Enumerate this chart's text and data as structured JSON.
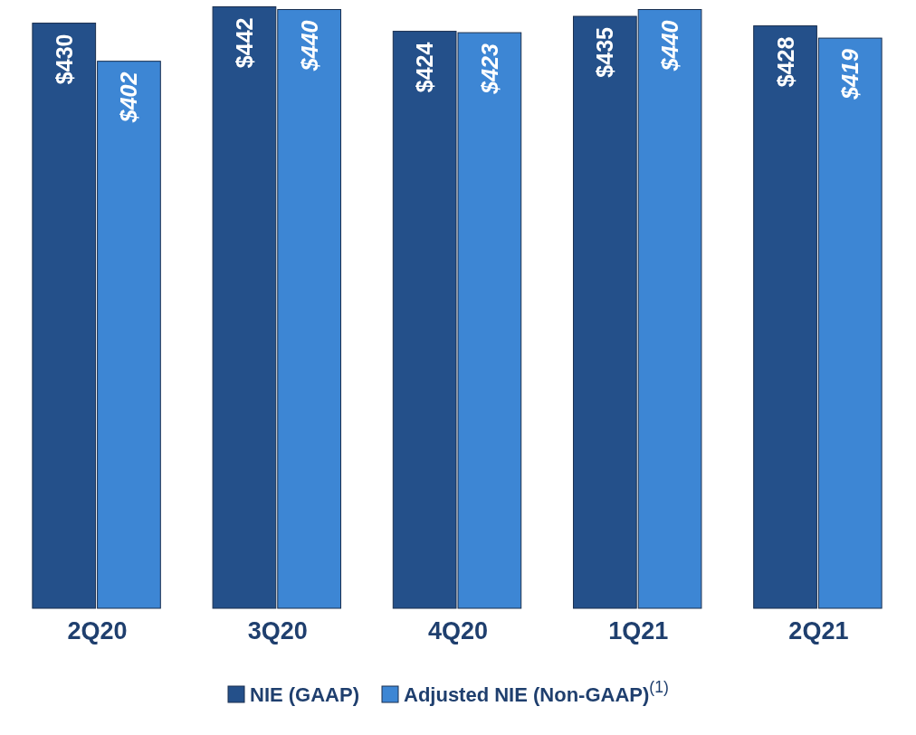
{
  "chart_data": {
    "type": "bar",
    "categories": [
      "2Q20",
      "3Q20",
      "4Q20",
      "1Q21",
      "2Q21"
    ],
    "series": [
      {
        "name": "NIE (GAAP)",
        "color": "#24508a",
        "values": [
          430,
          442,
          424,
          435,
          428
        ],
        "value_labels": [
          "$430",
          "$442",
          "$424",
          "$435",
          "$428"
        ]
      },
      {
        "name": "Adjusted NIE (Non-GAAP)$^{(1)}$",
        "color": "#3d86d4",
        "values": [
          402,
          440,
          423,
          440,
          419
        ],
        "value_labels": [
          "$402",
          "$440",
          "$423",
          "$440",
          "$419"
        ]
      }
    ],
    "ylim": [
      0,
      447
    ],
    "tick_labels": "x",
    "legend": "bottom"
  }
}
